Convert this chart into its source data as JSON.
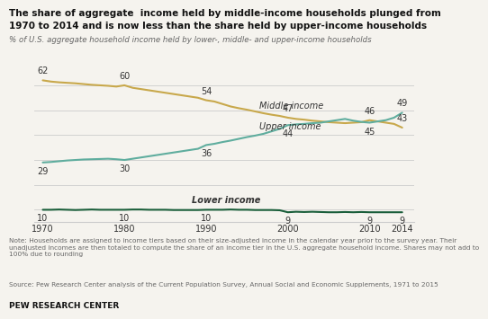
{
  "title_line1": "The share of aggregate  income held by middle-income households plunged from",
  "title_line2": "1970 to 2014 and is now less than the share held by upper-income households",
  "subtitle": "% of U.S. aggregate household income held by lower-, middle- and upper-income households",
  "note": "Note: Households are assigned to income tiers based on their size-adjusted income in the calendar year prior to the survey year. Their\nunadjusted incomes are then totaled to compute the share of an income tier in the U.S. aggregate household income. Shares may not add to\n100% due to rounding",
  "source": "Source: Pew Research Center analysis of the Current Population Survey, Annual Social and Economic Supplements, 1971 to 2015",
  "branding": "PEW RESEARCH CENTER",
  "years": [
    1970,
    1971,
    1972,
    1973,
    1974,
    1975,
    1976,
    1977,
    1978,
    1979,
    1980,
    1981,
    1982,
    1983,
    1984,
    1985,
    1986,
    1987,
    1988,
    1989,
    1990,
    1991,
    1992,
    1993,
    1994,
    1995,
    1996,
    1997,
    1998,
    1999,
    2000,
    2001,
    2002,
    2003,
    2004,
    2005,
    2006,
    2007,
    2008,
    2009,
    2010,
    2011,
    2012,
    2013,
    2014
  ],
  "middle": [
    62,
    61.5,
    61.2,
    61.0,
    60.8,
    60.5,
    60.2,
    60.0,
    59.8,
    59.5,
    60,
    59.0,
    58.5,
    58.0,
    57.5,
    57.0,
    56.5,
    56.0,
    55.5,
    55.0,
    54,
    53.5,
    52.5,
    51.5,
    50.8,
    50.2,
    49.5,
    48.8,
    48.2,
    47.7,
    47,
    46.5,
    46.2,
    45.8,
    45.5,
    45.2,
    45.0,
    44.8,
    45.0,
    45.2,
    46,
    45.5,
    45.0,
    44.5,
    43
  ],
  "upper": [
    29,
    29.2,
    29.5,
    29.8,
    30.0,
    30.2,
    30.3,
    30.4,
    30.5,
    30.3,
    30,
    30.5,
    31.0,
    31.5,
    32.0,
    32.5,
    33.0,
    33.5,
    34.0,
    34.5,
    36,
    36.5,
    37.2,
    37.8,
    38.5,
    39.2,
    39.8,
    40.5,
    41.5,
    42.5,
    44,
    44.3,
    44.5,
    44.8,
    45.0,
    45.5,
    46.0,
    46.5,
    45.8,
    45.3,
    45,
    45.5,
    46.0,
    47.0,
    49
  ],
  "lower": [
    10,
    10.0,
    10.1,
    10.0,
    9.9,
    10.0,
    10.1,
    10.0,
    10.0,
    10.0,
    10,
    10.1,
    10.1,
    10.0,
    10.0,
    10.0,
    9.9,
    9.9,
    9.9,
    9.9,
    10,
    10.0,
    10.0,
    10.1,
    10.0,
    10.0,
    9.9,
    9.9,
    9.9,
    9.8,
    9,
    9.2,
    9.1,
    9.2,
    9.1,
    9.0,
    9.0,
    9.1,
    9.0,
    9.1,
    9,
    9.0,
    9.0,
    9.0,
    9
  ],
  "middle_color": "#c8a84b",
  "upper_color": "#5fad9e",
  "lower_color": "#1a5e3a",
  "middle_labels": {
    "1970": 62,
    "1980": 60,
    "1990": 54,
    "2000": 47,
    "2010": 46,
    "2014": 43
  },
  "upper_labels": {
    "1970": 29,
    "1980": 30,
    "1990": 36,
    "2000": 44,
    "2010": 45,
    "2014": 49
  },
  "lower_labels": {
    "1970": 10,
    "1980": 10,
    "1990": 10,
    "2000": 9,
    "2010": 9,
    "2014": 9
  },
  "ylim": [
    5,
    68
  ],
  "xlim": [
    1969,
    2015.5
  ],
  "xticks": [
    1970,
    1980,
    1990,
    2000,
    2010,
    2014
  ],
  "background_color": "#f5f3ee",
  "grid_color": "#cccccc",
  "text_color": "#333333",
  "note_color": "#666666"
}
